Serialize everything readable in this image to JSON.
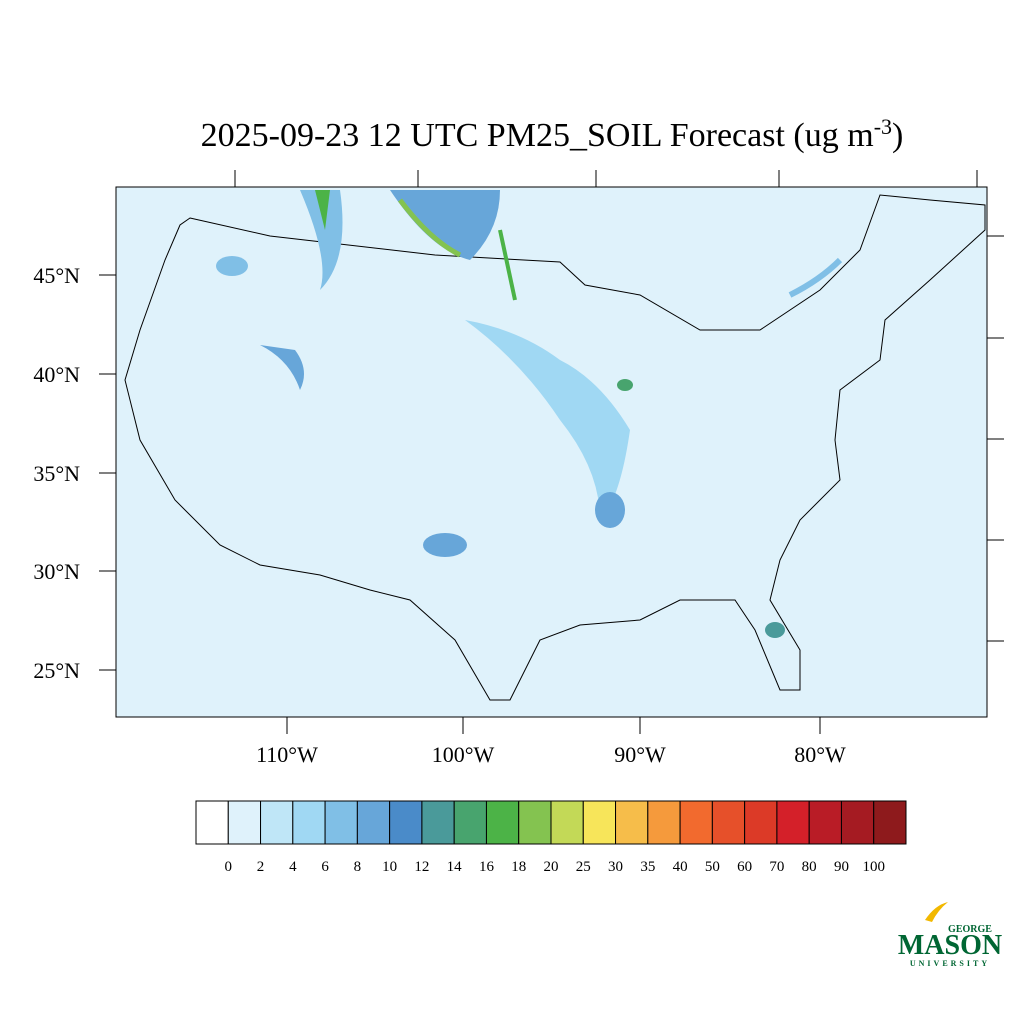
{
  "header": {
    "title": "2025-09-23 12 UTC PM25_SOIL Forecast (ug m",
    "title_superscript": "-3",
    "title_end": ")"
  },
  "map": {
    "lat_labels": [
      "45°N",
      "40°N",
      "35°N",
      "30°N",
      "25°N"
    ],
    "lon_labels": [
      "110°W",
      "100°W",
      "90°W",
      "80°W"
    ]
  },
  "colorbar": {
    "levels": [
      0,
      2,
      4,
      6,
      8,
      10,
      12,
      14,
      16,
      18,
      20,
      25,
      30,
      35,
      40,
      50,
      60,
      70,
      80,
      90,
      100
    ],
    "colors": [
      "#ffffff",
      "#dff2fb",
      "#bfe6f7",
      "#a0d8f3",
      "#80bfe6",
      "#67a6d9",
      "#4a8bc9",
      "#4a9a9a",
      "#48a46e",
      "#4cb347",
      "#84c350",
      "#c3d957",
      "#f7e55a",
      "#f6bd4a",
      "#f59a3c",
      "#f26a2e",
      "#e6502a",
      "#dc3a27",
      "#d42029",
      "#b91c26",
      "#a51b22",
      "#8e1a1c"
    ]
  },
  "logo": {
    "top": "GEORGE",
    "main": "MASON",
    "bottom": "UNIVERSITY"
  }
}
